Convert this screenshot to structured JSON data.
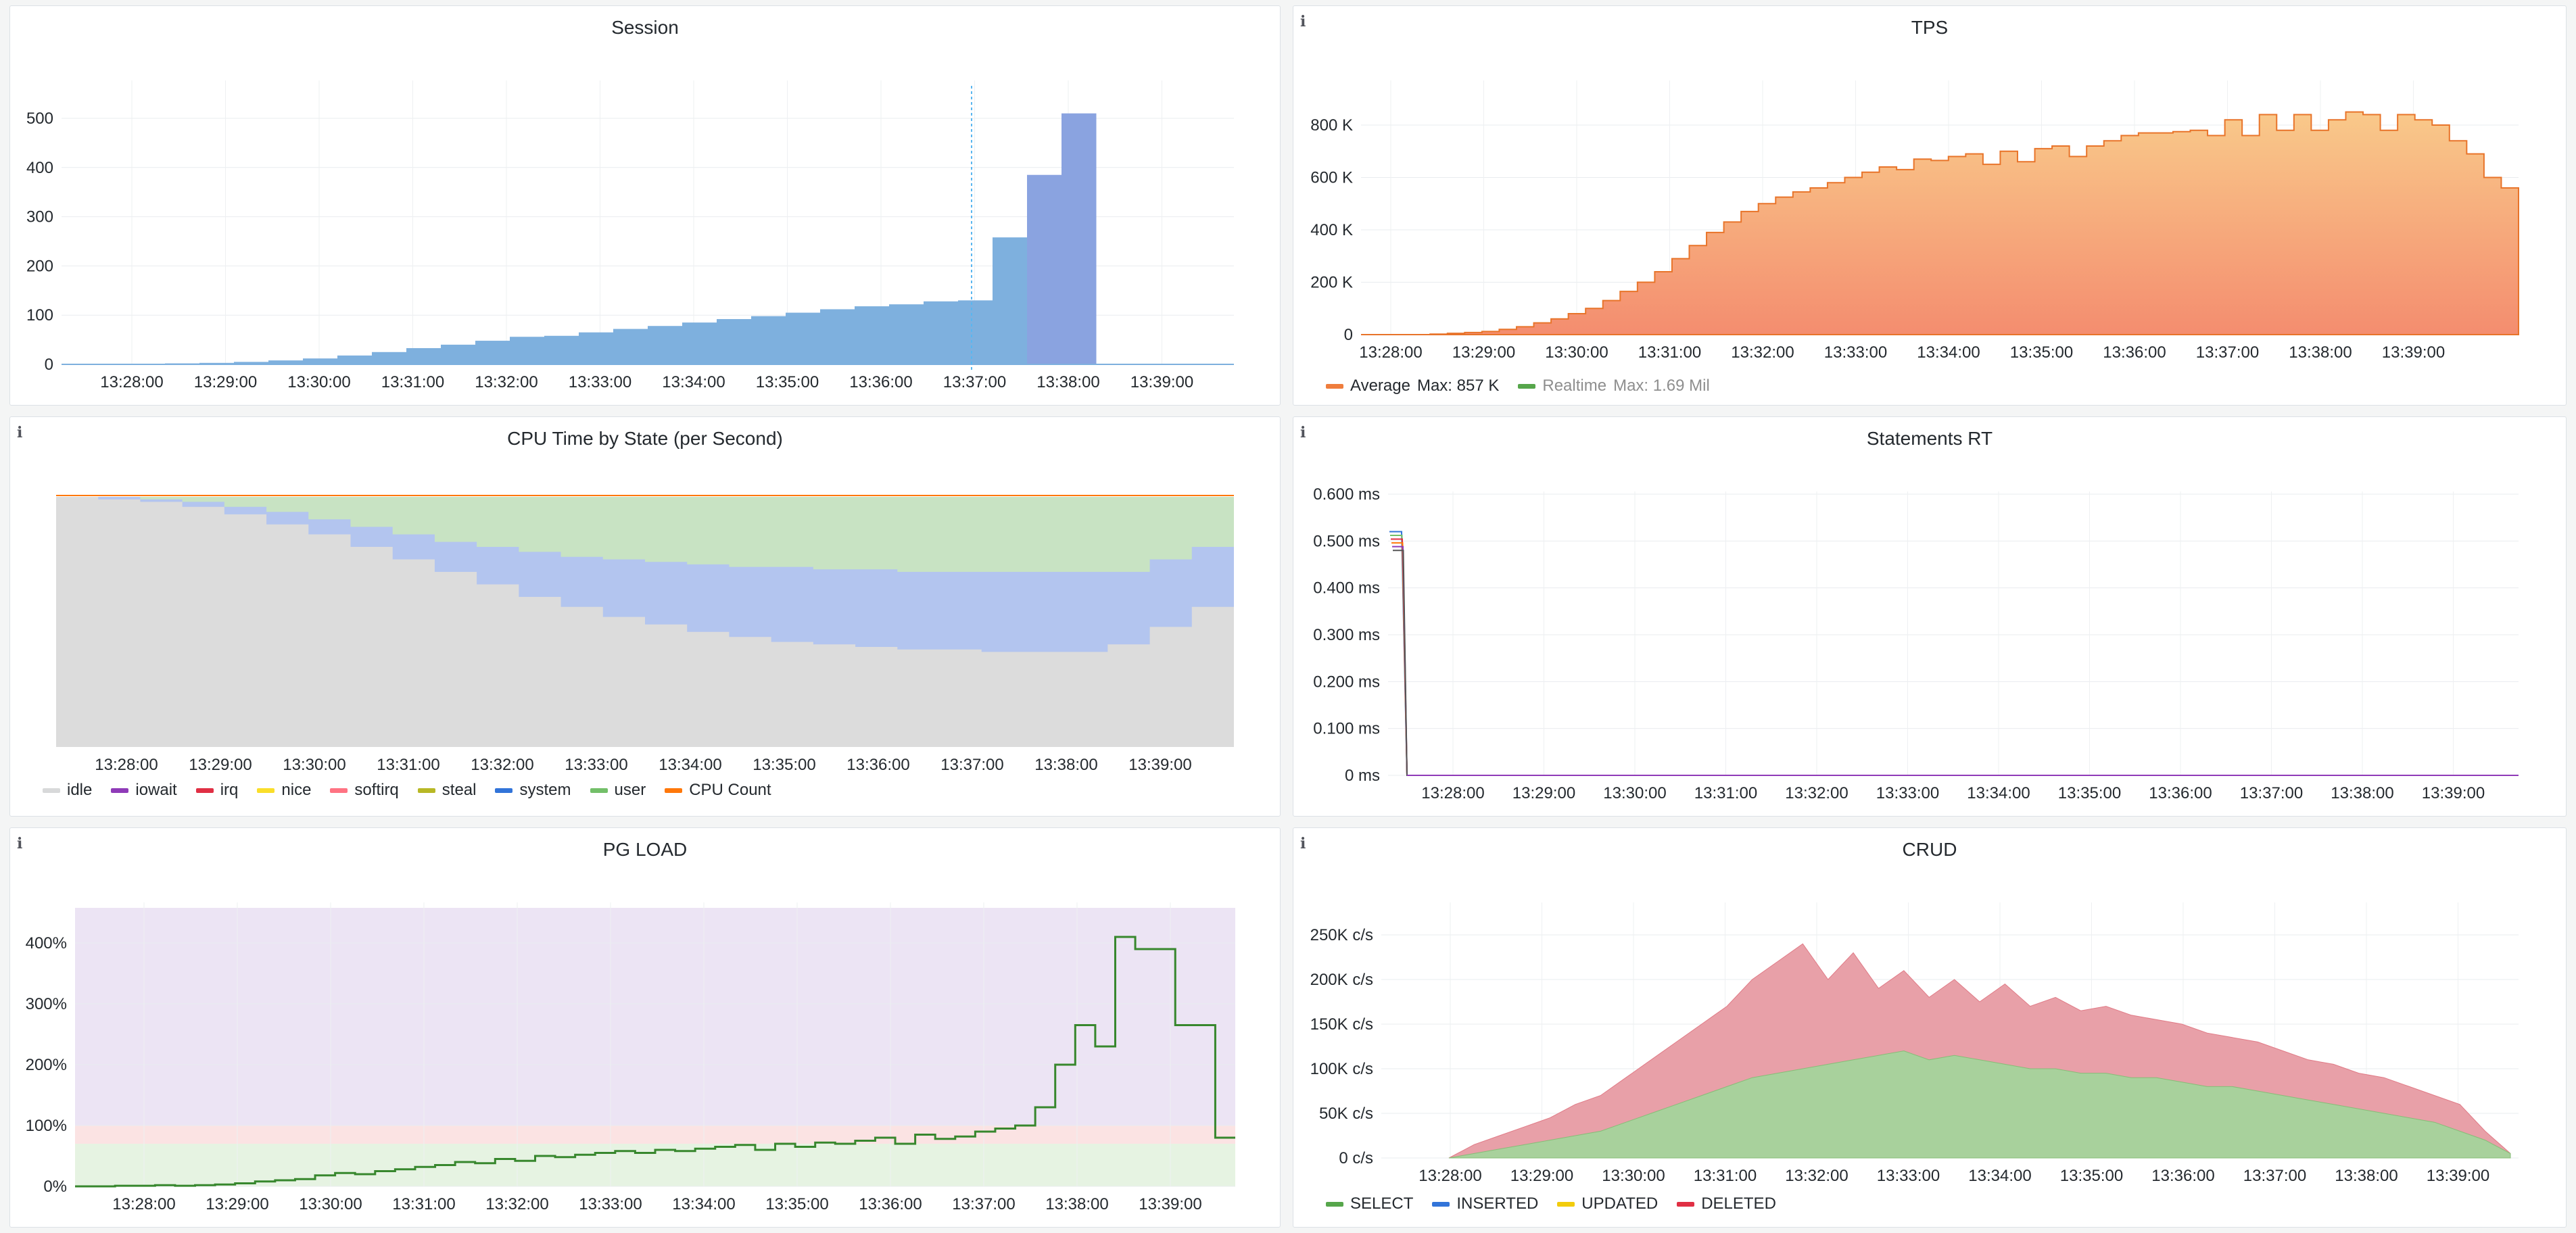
{
  "time_ticks": [
    "13:28:00",
    "13:29:00",
    "13:30:00",
    "13:31:00",
    "13:32:00",
    "13:33:00",
    "13:34:00",
    "13:35:00",
    "13:36:00",
    "13:37:00",
    "13:38:00",
    "13:39:00"
  ],
  "icons": {
    "info": "i"
  },
  "panels": {
    "session": {
      "title": "Session",
      "chart_data": {
        "type": "area",
        "x_ticks": [
          "13:28:00",
          "13:29:00",
          "13:30:00",
          "13:31:00",
          "13:32:00",
          "13:33:00",
          "13:34:00",
          "13:35:00",
          "13:36:00",
          "13:37:00",
          "13:38:00",
          "13:39:00"
        ],
        "y_ticks": [
          "0",
          "100",
          "200",
          "300",
          "400",
          "500"
        ],
        "ylim": [
          0,
          520
        ],
        "series": [
          {
            "color": "#7eb0de",
            "values": [
              0,
              0,
              0,
              2,
              3,
              5,
              8,
              12,
              18,
              25,
              33,
              40,
              48,
              56,
              58,
              65,
              72,
              78,
              85,
              92,
              98,
              105,
              112,
              118,
              122,
              128,
              130,
              258,
              385,
              510,
              0,
              0,
              0,
              0
            ]
          }
        ]
      }
    },
    "tps": {
      "title": "TPS",
      "chart_data": {
        "type": "area",
        "x_ticks": [
          "13:28:00",
          "13:29:00",
          "13:30:00",
          "13:31:00",
          "13:32:00",
          "13:33:00",
          "13:34:00",
          "13:35:00",
          "13:36:00",
          "13:37:00",
          "13:38:00",
          "13:39:00"
        ],
        "y_ticks": [
          "0",
          "200 K",
          "400 K",
          "600 K",
          "800 K"
        ],
        "ylim": [
          0,
          900
        ],
        "series": [
          {
            "name": "Average",
            "color": "#ef7d3d",
            "values": [
              0,
              0,
              0,
              0,
              2,
              5,
              8,
              12,
              20,
              30,
              45,
              60,
              80,
              100,
              130,
              165,
              200,
              240,
              290,
              340,
              390,
              430,
              470,
              500,
              525,
              545,
              560,
              580,
              600,
              620,
              640,
              630,
              670,
              665,
              680,
              690,
              650,
              700,
              660,
              710,
              720,
              680,
              720,
              740,
              760,
              770,
              770,
              775,
              780,
              760,
              820,
              760,
              840,
              780,
              840,
              780,
              820,
              850,
              840,
              780,
              840,
              820,
              800,
              740,
              690,
              600,
              560
            ]
          }
        ],
        "legend": [
          {
            "name": "Average",
            "stat": "Max: 857 K",
            "color": "#ef7d3d",
            "dim": false
          },
          {
            "name": "Realtime",
            "stat": "Max: 1.69 Mil",
            "color": "#56a64b",
            "dim": true
          }
        ]
      }
    },
    "cpu": {
      "title": "CPU Time by State (per Second)",
      "chart_data": {
        "type": "area",
        "x_ticks": [
          "13:28:00",
          "13:29:00",
          "13:30:00",
          "13:31:00",
          "13:32:00",
          "13:33:00",
          "13:34:00",
          "13:35:00",
          "13:36:00",
          "13:37:00",
          "13:38:00",
          "13:39:00"
        ],
        "idle_fraction": [
          1.0,
          0.99,
          0.98,
          0.96,
          0.93,
          0.89,
          0.85,
          0.8,
          0.75,
          0.7,
          0.65,
          0.6,
          0.56,
          0.52,
          0.49,
          0.46,
          0.44,
          0.42,
          0.41,
          0.4,
          0.39,
          0.39,
          0.38,
          0.38,
          0.38,
          0.41,
          0.48,
          0.56
        ],
        "user_fraction": [
          0.0,
          0.0,
          0.01,
          0.02,
          0.04,
          0.06,
          0.09,
          0.12,
          0.15,
          0.18,
          0.2,
          0.22,
          0.24,
          0.25,
          0.26,
          0.27,
          0.28,
          0.28,
          0.29,
          0.29,
          0.3,
          0.3,
          0.3,
          0.3,
          0.3,
          0.3,
          0.25,
          0.2
        ],
        "legend": [
          {
            "name": "idle",
            "color": "#d8d9da"
          },
          {
            "name": "iowait",
            "color": "#8f3bb8"
          },
          {
            "name": "irq",
            "color": "#e02f44"
          },
          {
            "name": "nice",
            "color": "#fade2a"
          },
          {
            "name": "softirq",
            "color": "#ff7383"
          },
          {
            "name": "steal",
            "color": "#b8b825"
          },
          {
            "name": "system",
            "color": "#3274d9"
          },
          {
            "name": "user",
            "color": "#73bf69"
          },
          {
            "name": "CPU Count",
            "color": "#ff780a"
          }
        ]
      }
    },
    "statements": {
      "title": "Statements RT",
      "chart_data": {
        "type": "line",
        "x_ticks": [
          "13:28:00",
          "13:29:00",
          "13:30:00",
          "13:31:00",
          "13:32:00",
          "13:33:00",
          "13:34:00",
          "13:35:00",
          "13:36:00",
          "13:37:00",
          "13:38:00",
          "13:39:00"
        ],
        "y_ticks": [
          "0 ms",
          "0.100 ms",
          "0.200 ms",
          "0.300 ms",
          "0.400 ms",
          "0.500 ms",
          "0.600 ms"
        ],
        "ylim": [
          0,
          0.6
        ],
        "spike_start": 0.52,
        "series_colors": [
          "#3274d9",
          "#73bf69",
          "#e02f44",
          "#ff780a",
          "#8f3bb8",
          "#555555"
        ]
      }
    },
    "pgload": {
      "title": "PG LOAD",
      "chart_data": {
        "type": "line",
        "x_ticks": [
          "13:28:00",
          "13:29:00",
          "13:30:00",
          "13:31:00",
          "13:32:00",
          "13:33:00",
          "13:34:00",
          "13:35:00",
          "13:36:00",
          "13:37:00",
          "13:38:00",
          "13:39:00"
        ],
        "y_ticks": [
          "0%",
          "100%",
          "200%",
          "300%",
          "400%"
        ],
        "ylim": [
          0,
          460
        ],
        "thresholds": [
          {
            "from": 0,
            "to": 70,
            "color": "#e6f3e2"
          },
          {
            "from": 70,
            "to": 100,
            "color": "#fbe3e3"
          },
          {
            "from": 100,
            "to": 460,
            "color": "#ece4f4"
          }
        ],
        "series": [
          {
            "color": "#37872d",
            "values": [
              0,
              0,
              1,
              1,
              2,
              1,
              2,
              3,
              5,
              8,
              10,
              12,
              18,
              22,
              20,
              25,
              28,
              32,
              35,
              40,
              38,
              45,
              42,
              50,
              48,
              52,
              55,
              58,
              55,
              60,
              58,
              62,
              65,
              68,
              60,
              70,
              65,
              72,
              70,
              75,
              80,
              70,
              85,
              78,
              82,
              90,
              95,
              100,
              130,
              200,
              265,
              230,
              410,
              390,
              390,
              265,
              265,
              80
            ]
          }
        ]
      }
    },
    "crud": {
      "title": "CRUD",
      "chart_data": {
        "type": "area",
        "x_ticks": [
          "13:28:00",
          "13:29:00",
          "13:30:00",
          "13:31:00",
          "13:32:00",
          "13:33:00",
          "13:34:00",
          "13:35:00",
          "13:36:00",
          "13:37:00",
          "13:38:00",
          "13:39:00"
        ],
        "y_ticks": [
          "0 c/s",
          "50K c/s",
          "100K c/s",
          "150K c/s",
          "200K c/s",
          "250K c/s"
        ],
        "ylim": [
          0,
          260
        ],
        "select": [
          0,
          5,
          10,
          15,
          20,
          25,
          30,
          40,
          50,
          60,
          70,
          80,
          90,
          95,
          100,
          105,
          110,
          115,
          120,
          110,
          115,
          110,
          105,
          100,
          100,
          95,
          95,
          90,
          90,
          85,
          80,
          80,
          75,
          70,
          65,
          60,
          55,
          50,
          45,
          40,
          30,
          20,
          5
        ],
        "total": [
          0,
          15,
          25,
          35,
          45,
          60,
          70,
          90,
          110,
          130,
          150,
          170,
          200,
          220,
          240,
          200,
          230,
          190,
          210,
          180,
          200,
          175,
          195,
          170,
          180,
          165,
          170,
          160,
          155,
          150,
          140,
          135,
          130,
          120,
          110,
          105,
          95,
          90,
          80,
          70,
          60,
          30,
          5
        ],
        "legend": [
          {
            "name": "SELECT",
            "color": "#56a64b"
          },
          {
            "name": "INSERTED",
            "color": "#3274d9"
          },
          {
            "name": "UPDATED",
            "color": "#f2cc0c"
          },
          {
            "name": "DELETED",
            "color": "#e02f44"
          }
        ]
      }
    }
  }
}
